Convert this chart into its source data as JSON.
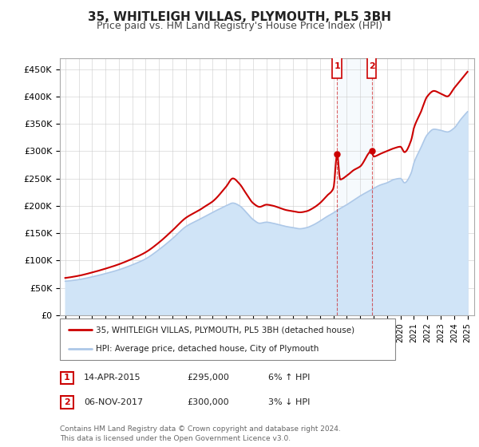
{
  "title": "35, WHITLEIGH VILLAS, PLYMOUTH, PL5 3BH",
  "subtitle": "Price paid vs. HM Land Registry's House Price Index (HPI)",
  "ylabel_ticks": [
    "£0",
    "£50K",
    "£100K",
    "£150K",
    "£200K",
    "£250K",
    "£300K",
    "£350K",
    "£400K",
    "£450K"
  ],
  "ytick_values": [
    0,
    50000,
    100000,
    150000,
    200000,
    250000,
    300000,
    350000,
    400000,
    450000
  ],
  "ylim": [
    0,
    470000
  ],
  "xlim_start": 1994.6,
  "xlim_end": 2025.5,
  "legend_line1": "35, WHITLEIGH VILLAS, PLYMOUTH, PL5 3BH (detached house)",
  "legend_line2": "HPI: Average price, detached house, City of Plymouth",
  "transaction1_date": "14-APR-2015",
  "transaction1_price": "£295,000",
  "transaction1_hpi": "6% ↑ HPI",
  "transaction2_date": "06-NOV-2017",
  "transaction2_price": "£300,000",
  "transaction2_hpi": "3% ↓ HPI",
  "footer": "Contains HM Land Registry data © Crown copyright and database right 2024.\nThis data is licensed under the Open Government Licence v3.0.",
  "hpi_color": "#adc8e8",
  "hpi_fill_color": "#d0e4f7",
  "price_color": "#cc0000",
  "transaction1_x": 2015.28,
  "transaction1_y": 295000,
  "transaction2_x": 2017.85,
  "transaction2_y": 300000,
  "background_color": "#ffffff",
  "grid_color": "#cccccc",
  "plot_bg_color": "#ffffff",
  "title_fontsize": 11,
  "subtitle_fontsize": 9
}
